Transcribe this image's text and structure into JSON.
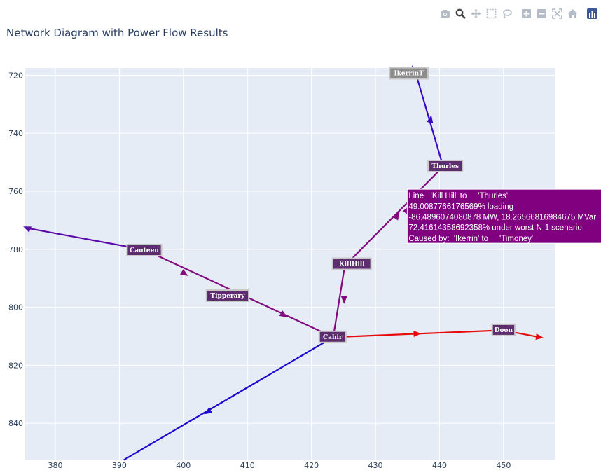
{
  "title": "Network Diagram with Power Flow Results",
  "modebar": [
    {
      "name": "camera-icon"
    },
    {
      "name": "zoom-icon"
    },
    {
      "name": "pan-icon"
    },
    {
      "name": "box-select-icon"
    },
    {
      "name": "lasso-select-icon"
    },
    {
      "name": "zoom-in-icon"
    },
    {
      "name": "zoom-out-icon"
    },
    {
      "name": "autoscale-icon"
    },
    {
      "name": "reset-axes-icon"
    },
    {
      "name": "plotly-logo-icon"
    }
  ],
  "chart_data": {
    "type": "network",
    "xlim": [
      375.3,
      458
    ],
    "ylim": [
      852.5,
      717.5
    ],
    "y_reversed": true,
    "grid": true,
    "xticks": [
      380,
      390,
      400,
      410,
      420,
      430,
      440,
      450
    ],
    "yticks": [
      720,
      740,
      760,
      780,
      800,
      820,
      840
    ],
    "nodes": [
      {
        "name": "IkerrinT",
        "x": 435.2,
        "y": 719.3,
        "bg": "#8c8c8c"
      },
      {
        "name": "Thurles",
        "x": 440.9,
        "y": 751.3,
        "bg": "#5e2d70"
      },
      {
        "name": "Cauteen",
        "x": 393.9,
        "y": 780.3,
        "bg": "#5e2d70"
      },
      {
        "name": "KillHill",
        "x": 426.3,
        "y": 785.0,
        "bg": "#5e2d70"
      },
      {
        "name": "Tipperary",
        "x": 406.9,
        "y": 796.0,
        "bg": "#5e2d70"
      },
      {
        "name": "Cahir",
        "x": 423.3,
        "y": 810.2,
        "bg": "#5e2d70"
      },
      {
        "name": "Doon",
        "x": 450.0,
        "y": 807.8,
        "bg": "#5e2d70"
      }
    ],
    "edges": [
      {
        "points": [
          [
            440.4,
            750.2
          ],
          [
            436.1,
            717.9
          ]
        ],
        "color": "#3c09c9"
      },
      {
        "points": [
          [
            394.0,
            780.2
          ],
          [
            375.6,
            772.7
          ]
        ],
        "color": "#5a0aa8"
      },
      {
        "points": [
          [
            423.4,
            810.3
          ],
          [
            394.0,
            780.2
          ]
        ],
        "color": "#820a7d"
      },
      {
        "points": [
          [
            423.4,
            810.3
          ],
          [
            425.2,
            785.7
          ],
          [
            440.4,
            751.9
          ]
        ],
        "color": "#820a7d"
      },
      {
        "points": [
          [
            423.4,
            810.3
          ],
          [
            449.9,
            807.9
          ],
          [
            455.6,
            810.3
          ]
        ],
        "color": "#e80a0a"
      },
      {
        "points": [
          [
            423.4,
            810.3
          ],
          [
            390.7,
            852.6
          ]
        ],
        "color": "#1c08d2"
      }
    ],
    "arrowheads": [
      {
        "x": 435.7,
        "y": 717.9,
        "angle": -79,
        "color": "#3c09c9"
      },
      {
        "x": 438.6,
        "y": 735.1,
        "angle": -80,
        "color": "#3c09c9"
      },
      {
        "x": 375.6,
        "y": 772.7,
        "angle": -157,
        "color": "#5a0aa8"
      },
      {
        "x": 400.2,
        "y": 788.4,
        "angle": 33,
        "color": "#820a7d"
      },
      {
        "x": 415.7,
        "y": 802.7,
        "angle": 33,
        "color": "#820a7d"
      },
      {
        "x": 425.1,
        "y": 797.4,
        "angle": 90,
        "color": "#820a7d"
      },
      {
        "x": 433.4,
        "y": 768.4,
        "angle": -57,
        "color": "#820a7d"
      },
      {
        "x": 436.5,
        "y": 809.1,
        "angle": -2,
        "color": "#e80a0a"
      },
      {
        "x": 455.6,
        "y": 810.3,
        "angle": 8,
        "color": "#e80a0a"
      },
      {
        "x": 403.8,
        "y": 836.1,
        "angle": 148,
        "color": "#1c08d2"
      }
    ],
    "hover": {
      "lines": [
        "Line   'Kill Hill' to     'Thurles'",
        "49.0087766176569% loading",
        "-86.4896074080878 MW, 18.26566816984675 MVar",
        "72.41614358692358% under worst N-1 scenario",
        "Caused by:  'Ikerrin' to     'Timoney'"
      ],
      "anchor_x": 434.3,
      "anchor_y": 766.8,
      "bg": "#800080"
    }
  }
}
